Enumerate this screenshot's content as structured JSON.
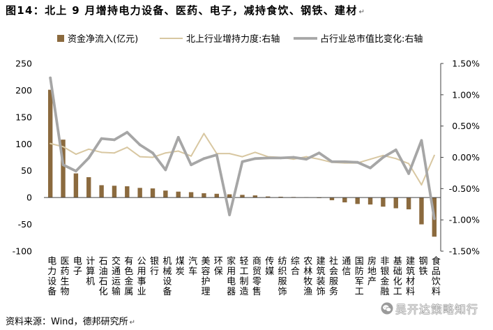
{
  "figure": {
    "para_mark": "↵",
    "source": "资料来源：Wind，德邦研究所",
    "source_mark": "↵",
    "watermark": "吴开达策略知行",
    "watermark_icon": "wechat-icon"
  },
  "chart_data": {
    "type": "bar",
    "title": "图14：北上 9 月增持电力设备、医药、电子，减持食饮、钢铁、建材",
    "legend": "top",
    "grid": false,
    "categories": [
      "电力设备",
      "医药生物",
      "电子",
      "计算机",
      "石油石化",
      "交通运输",
      "有色金属",
      "公用事业",
      "银行",
      "机械设备",
      "煤炭",
      "汽车",
      "美容护理",
      "环保",
      "家用电器",
      "轻工制造",
      "商贸零售",
      "传媒",
      "纺织服饰",
      "综合",
      "农林牧渔",
      "建筑装饰",
      "社会服务",
      "通信",
      "国防军工",
      "房地产",
      "非银金融",
      "基础化工",
      "建筑材料",
      "钢铁",
      "食品饮料"
    ],
    "y_left": {
      "min": -100,
      "max": 250,
      "ticks": [
        250,
        200,
        150,
        100,
        50,
        0,
        -50,
        -100
      ],
      "tick_labels": [
        "250",
        "200",
        "150",
        "100",
        "50",
        "0",
        "-50",
        "-100"
      ]
    },
    "y_right": {
      "min": -1.5,
      "max": 1.5,
      "ticks": [
        1.5,
        1.0,
        0.5,
        0,
        -0.5,
        -1.0,
        -1.5
      ],
      "tick_labels": [
        "1.50%",
        "1.00%",
        "0.50%",
        "0.00%",
        "-0.50%",
        "-1.00%",
        "-1.50%"
      ]
    },
    "series": [
      {
        "name": "资金净流入(亿元)",
        "type": "bar",
        "axis": "left",
        "color": "#8B6A3E",
        "values": [
          201,
          108,
          45,
          38,
          23,
          22,
          21,
          18,
          17,
          13,
          11,
          10,
          8,
          7,
          6,
          5,
          4,
          2,
          1.5,
          1,
          0.5,
          -1,
          -5,
          -9,
          -12,
          -13,
          -17,
          -20,
          -22,
          -50,
          -73
        ]
      },
      {
        "name": "北上行业增持力度:右轴",
        "type": "line",
        "axis": "right",
        "color": "#D8C7A1",
        "values": [
          0.22,
          0.17,
          0.05,
          0.13,
          0.08,
          0.07,
          0.16,
          0.01,
          0.0,
          0.07,
          0.1,
          0.02,
          0.38,
          0.06,
          0.06,
          0.01,
          0.08,
          0.01,
          0.0,
          -0.03,
          0.01,
          -0.03,
          -0.08,
          -0.09,
          -0.09,
          -0.03,
          0.03,
          -0.02,
          -0.1,
          -0.44,
          0.03
        ]
      },
      {
        "name": "占行业总市值比变化:右轴",
        "type": "line",
        "axis": "right",
        "color": "#A6A6A6",
        "values": [
          1.27,
          -0.12,
          -0.22,
          -0.01,
          0.3,
          0.28,
          0.4,
          0.2,
          0.07,
          -0.2,
          0.32,
          -0.12,
          -0.02,
          0.04,
          -0.92,
          -0.07,
          -0.02,
          -0.01,
          -0.01,
          0.0,
          -0.03,
          0.07,
          -0.07,
          -0.07,
          -0.08,
          -0.17,
          0.0,
          0.12,
          -0.26,
          0.27,
          -0.98
        ]
      }
    ]
  }
}
